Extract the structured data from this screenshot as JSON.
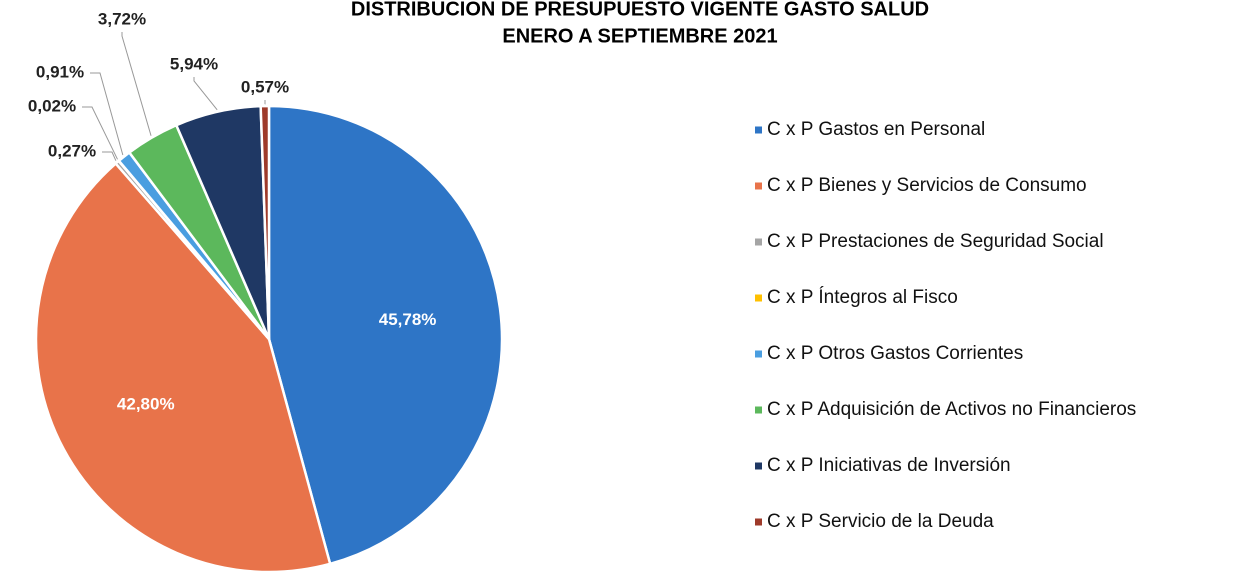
{
  "chart_data": {
    "type": "pie",
    "title": "DISTRIBUCIÓN DE PRESUPUESTO VIGENTE GASTO SALUD",
    "subtitle": "ENERO A SEPTIEMBRE 2021",
    "categories": [
      "C x P Gastos en Personal",
      "C x P Bienes y Servicios de Consumo",
      "C x P Prestaciones de Seguridad Social",
      "C x P Íntegros al Fisco",
      "C x P Otros Gastos Corrientes",
      "C x P Adquisición de Activos no Financieros",
      "C x P Iniciativas de Inversión",
      "C x P Servicio de la Deuda"
    ],
    "values": [
      45.78,
      42.8,
      0.27,
      0.02,
      0.91,
      3.72,
      5.94,
      0.57
    ],
    "value_labels": [
      "45,78%",
      "42,80%",
      "0,27%",
      "0,02%",
      "0,91%",
      "3,72%",
      "5,94%",
      "0,57%"
    ],
    "colors": [
      "#2e75c6",
      "#e8734a",
      "#a5a5a5",
      "#ffc000",
      "#4a9ee0",
      "#5cb85c",
      "#1f3864",
      "#9e3a2a"
    ],
    "legend": "right"
  }
}
